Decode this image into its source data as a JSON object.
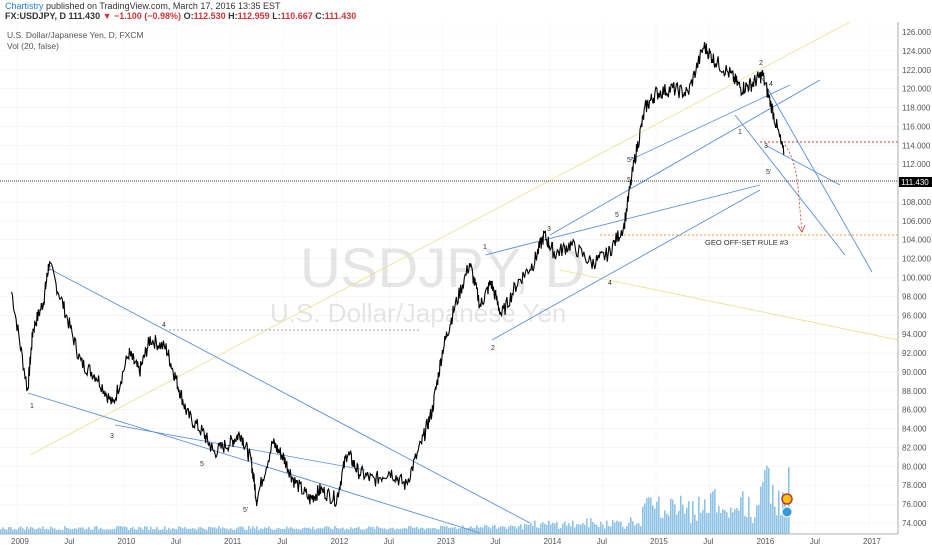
{
  "header": {
    "author": "Chartistry",
    "published": " published on TradingView.com, March 17, 2016 13:35 EST",
    "symbol": "FX:USDJPY, D",
    "last": "111.430",
    "change": "▼ −1.100 (−0.98%)",
    "o_label": "O:",
    "o_value": "112.530",
    "h_label": "H:",
    "h_value": "112.959",
    "l_label": "L:",
    "l_value": "110.667",
    "c_label": "C:",
    "c_value": "111.430"
  },
  "legend": {
    "title": "U.S. Dollar/Japanese Yen, D, FXCM",
    "volume": "Vol (20, false)"
  },
  "watermark": {
    "symbol": "USDJPY, D",
    "name": "U.S. Dollar/Japanese Yen"
  },
  "annotation": "GEO OFF-SET RULE #3",
  "price_label": "111.430",
  "colors": {
    "candles": "#000000",
    "trendlines": "#5b8fd6",
    "volume": "#8ec3e6",
    "price_line": "#000000",
    "dotted_red": "#c0392b",
    "dotted_orange": "#e8a23a"
  },
  "chart_data": {
    "type": "line",
    "title": "U.S. Dollar/Japanese Yen, D, FXCM",
    "xlabel": "",
    "ylabel": "",
    "ylim": [
      73.0,
      127.0
    ],
    "y_ticks": [
      "126.000",
      "124.000",
      "122.000",
      "120.000",
      "118.000",
      "116.000",
      "114.000",
      "112.000",
      "110.000",
      "108.000",
      "106.000",
      "104.000",
      "102.000",
      "100.000",
      "98.000",
      "96.000",
      "94.000",
      "92.000",
      "90.000",
      "88.000",
      "86.000",
      "84.000",
      "82.000",
      "80.000",
      "78.000",
      "76.000",
      "74.000"
    ],
    "x_ticks": [
      "2009",
      "Jul",
      "2010",
      "Jul",
      "2011",
      "Jul",
      "2012",
      "Jul",
      "2013",
      "Jul",
      "2014",
      "Jul",
      "2015",
      "Jul",
      "2016",
      "Jul",
      "2017"
    ],
    "xlim": [
      2009.0,
      2017.0
    ],
    "series": [
      {
        "values_x": [
          2008.95,
          2009.1,
          2009.15,
          2009.25,
          2009.3,
          2009.45,
          2009.6,
          2009.75,
          2009.9,
          2010.05,
          2010.15,
          2010.25,
          2010.4,
          2010.5,
          2010.6,
          2010.75,
          2010.85,
          2011.0,
          2011.1,
          2011.2,
          2011.25,
          2011.4,
          2011.5,
          2011.6,
          2011.75,
          2011.85,
          2012.0,
          2012.1,
          2012.2,
          2012.35,
          2012.5,
          2012.65,
          2012.8,
          2012.9,
          2013.0,
          2013.1,
          2013.25,
          2013.35,
          2013.45,
          2013.55,
          2013.7,
          2013.85,
          2013.95,
          2014.05,
          2014.2,
          2014.4,
          2014.55,
          2014.7,
          2014.8,
          2014.9,
          2015.0,
          2015.15,
          2015.3,
          2015.45,
          2015.55,
          2015.7,
          2015.8,
          2015.9,
          2016.0,
          2016.1,
          2016.2
        ],
        "values_y": [
          98.5,
          88.0,
          94.5,
          97.5,
          101.5,
          96.5,
          91.0,
          89.5,
          86.5,
          92.0,
          90.0,
          93.5,
          92.5,
          89.0,
          85.5,
          83.5,
          81.5,
          82.5,
          83.5,
          80.5,
          76.5,
          82.5,
          81.0,
          78.5,
          76.5,
          77.5,
          76.5,
          81.5,
          79.5,
          78.5,
          79.5,
          78.0,
          82.5,
          86.0,
          92.5,
          96.5,
          101.5,
          97.0,
          99.5,
          96.0,
          99.5,
          101.5,
          104.5,
          102.5,
          103.5,
          101.5,
          102.5,
          105.5,
          112.5,
          118.0,
          119.5,
          120.0,
          119.5,
          124.5,
          123.0,
          121.5,
          120.0,
          120.5,
          121.5,
          117.5,
          113.0
        ]
      }
    ]
  }
}
